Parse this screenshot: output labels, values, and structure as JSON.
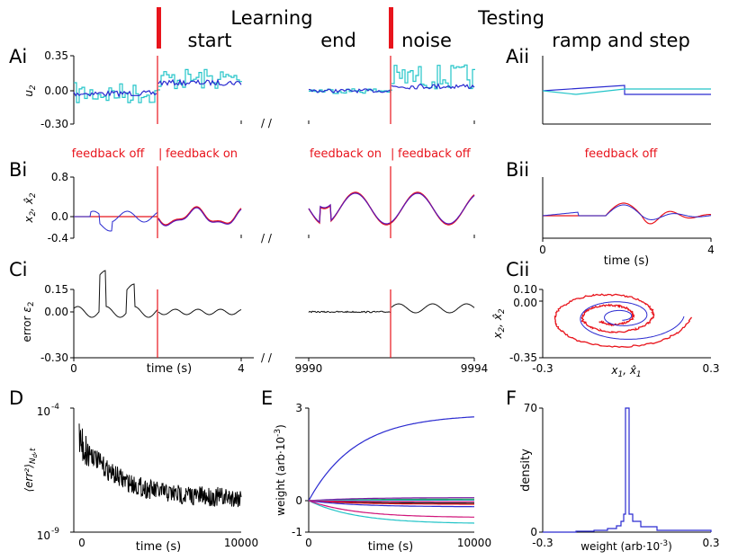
{
  "colors": {
    "axis": "#000000",
    "red": "#e8141c",
    "blue": "#2a2ad0",
    "cyan": "#22c4c8",
    "purple": "#7a18a8",
    "black": "#111111",
    "magenta": "#d0157a",
    "green": "#1a8a3a"
  },
  "header": {
    "learning": "Learning",
    "testing": "Testing",
    "start": "start",
    "end": "end",
    "noise": "noise",
    "ramp_and_step": "ramp and step"
  },
  "panel_labels": {
    "Ai": "Ai",
    "Aii": "Aii",
    "Bi": "Bi",
    "Bii": "Bii",
    "Ci": "Ci",
    "Cii": "Cii",
    "D": "D",
    "E": "E",
    "F": "F"
  },
  "feedback": {
    "off_left": "feedback off",
    "on_left": "feedback on",
    "on_right": "feedback on",
    "off_right": "feedback off",
    "off_test": "feedback off"
  },
  "chart_data": [
    {
      "id": "Ai",
      "type": "line",
      "title": "",
      "ylabel": "u2",
      "ylim": [
        -0.3,
        0.35
      ],
      "yticks": [
        "0.35",
        "0.00",
        "-0.30"
      ],
      "segments": [
        {
          "t_range": [
            0,
            4
          ],
          "switch_at": 2
        },
        {
          "t_range": [
            9990,
            9994
          ],
          "switch_at": 9992
        }
      ],
      "series": [
        {
          "name": "u2",
          "color": "cyan"
        },
        {
          "name": "u2_hat",
          "color": "blue"
        }
      ]
    },
    {
      "id": "Aii",
      "type": "line",
      "ylim": [
        -0.3,
        0.35
      ],
      "xlim": [
        0,
        4
      ],
      "series": [
        {
          "name": "ramp",
          "color": "blue",
          "values": [
            0.0,
            0.08,
            -0.06,
            -0.06
          ]
        },
        {
          "name": "step",
          "color": "cyan",
          "values": [
            0.0,
            -0.04,
            0.0,
            0.0
          ]
        }
      ]
    },
    {
      "id": "Bi",
      "type": "line",
      "ylabel": "x2, x̂2",
      "ylim": [
        -0.4,
        0.8
      ],
      "yticks": [
        "0.8",
        "0.0",
        "-0.4"
      ],
      "segments": [
        {
          "t_range": [
            0,
            4
          ]
        },
        {
          "t_range": [
            9990,
            9994
          ]
        }
      ],
      "series": [
        {
          "name": "x2",
          "color": "red"
        },
        {
          "name": "x2_hat",
          "color": "blue"
        }
      ]
    },
    {
      "id": "Bii",
      "type": "line",
      "xlabel": "time (s)",
      "xlim": [
        0,
        4
      ],
      "xticks": [
        "0",
        "4"
      ],
      "series": [
        {
          "name": "x2",
          "color": "red"
        },
        {
          "name": "x2_hat",
          "color": "blue"
        }
      ]
    },
    {
      "id": "Ci",
      "type": "line",
      "ylabel": "error ε2",
      "xlabel": "time (s)",
      "ylim": [
        -0.3,
        0.15
      ],
      "yticks": [
        "0.15",
        "0.00",
        "-0.30"
      ],
      "xticks": [
        "0",
        "4",
        "9990",
        "9994"
      ]
    },
    {
      "id": "Cii",
      "type": "line",
      "xlabel": "x1, x̂1",
      "ylabel": "x2, x̂2",
      "xlim": [
        -0.3,
        0.3
      ],
      "ylim": [
        -0.35,
        0.1
      ],
      "xticks": [
        "-0.3",
        "0.3"
      ],
      "yticks": [
        "0.10",
        "0.00",
        "-0.35"
      ]
    },
    {
      "id": "D",
      "type": "line",
      "ylabel": "⟨err²⟩ N_d,t",
      "xlabel": "time (s)",
      "xlim": [
        0,
        10000
      ],
      "xticks": [
        "0",
        "10000"
      ],
      "yticks": [
        "10^-4",
        "10^-9"
      ],
      "ylim_log10": [
        -9,
        -4
      ]
    },
    {
      "id": "E",
      "type": "line",
      "ylabel": "weight (arb·10⁻³)",
      "xlabel": "time (s)",
      "xlim": [
        0,
        10000
      ],
      "ylim": [
        -1,
        3
      ],
      "xticks": [
        "0",
        "10000"
      ],
      "yticks": [
        "3",
        "0",
        "-1"
      ],
      "series": [
        {
          "name": "w_max",
          "color": "blue",
          "end_value": 2.8
        },
        {
          "name": "w_min",
          "color": "blue",
          "end_value": -0.75
        }
      ]
    },
    {
      "id": "F",
      "type": "bar",
      "ylabel": "density",
      "xlabel": "weight (arb·10⁻³)",
      "xlim": [
        -0.3,
        0.3
      ],
      "ylim": [
        0,
        70
      ],
      "xticks": [
        "-0.3",
        "0.3"
      ],
      "yticks": [
        "70",
        "0"
      ],
      "peak_value": 70
    }
  ],
  "tick_labels": {
    "Ai_y": [
      "0.35",
      "0.00",
      "-0.30"
    ],
    "Bi_y": [
      "0.8",
      "0.0",
      "-0.4"
    ],
    "Bii_x": [
      "0",
      "4"
    ],
    "Ci_y": [
      "0.15",
      "0.00",
      "-0.30"
    ],
    "Ci_x": [
      "0",
      "4",
      "9990",
      "9994"
    ],
    "Cii_y": [
      "0.10",
      "0.00",
      "-0.35"
    ],
    "Cii_x": [
      "-0.3",
      "0.3"
    ],
    "D_x": [
      "0",
      "10000"
    ],
    "D_y": [
      "10",
      "-4",
      "10",
      "-9"
    ],
    "E_x": [
      "0",
      "10000"
    ],
    "E_y": [
      "3",
      "0",
      "-1"
    ],
    "F_x": [
      "-0.3",
      "0.3"
    ],
    "F_y": [
      "70",
      "0"
    ]
  },
  "axis_labels": {
    "time": "time (s)",
    "error": "error",
    "weight": "weight (arb·10",
    "weight_exp": "-3",
    "density": "density"
  }
}
